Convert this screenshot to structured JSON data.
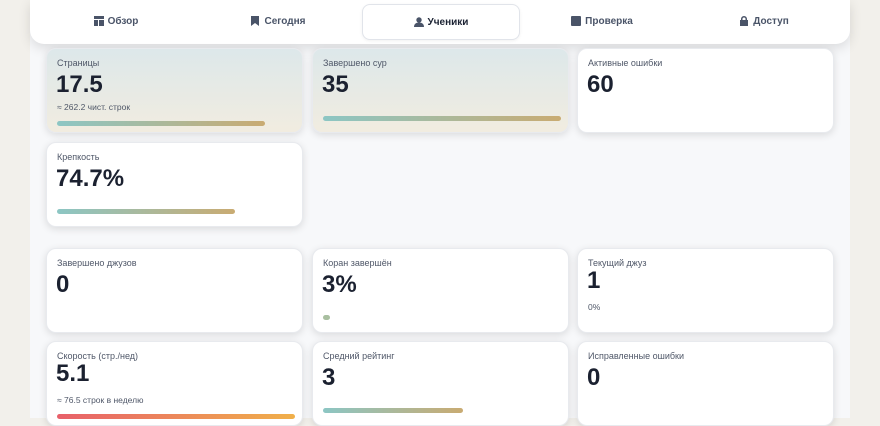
{
  "nav": {
    "tabs": [
      "Обзор",
      "Сегодня",
      "Ученики",
      "Проверка",
      "Доступ"
    ],
    "active": 2
  },
  "cards": [
    {
      "label": "Страницы",
      "value": "17.5",
      "sub": "≈ 262.2 чист. строк"
    },
    {
      "label": "Завершено сур",
      "value": "35"
    },
    {
      "label": "Активные ошибки",
      "value": "60"
    },
    {
      "label": "Крепкость",
      "value": "74.7%"
    },
    {
      "label": "Завершено джузов",
      "value": "0"
    },
    {
      "label": "Коран завершён",
      "value": "3%"
    },
    {
      "label": "Текущий джуз",
      "value": "1",
      "sub": "0%"
    },
    {
      "label": "Скорость (стр./нед)",
      "value": "5.1",
      "sub": "≈ 76.5 строк в неделю"
    },
    {
      "label": "Средний рейтинг",
      "value": "3"
    },
    {
      "label": "Исправленные ошибки",
      "value": "0"
    }
  ]
}
